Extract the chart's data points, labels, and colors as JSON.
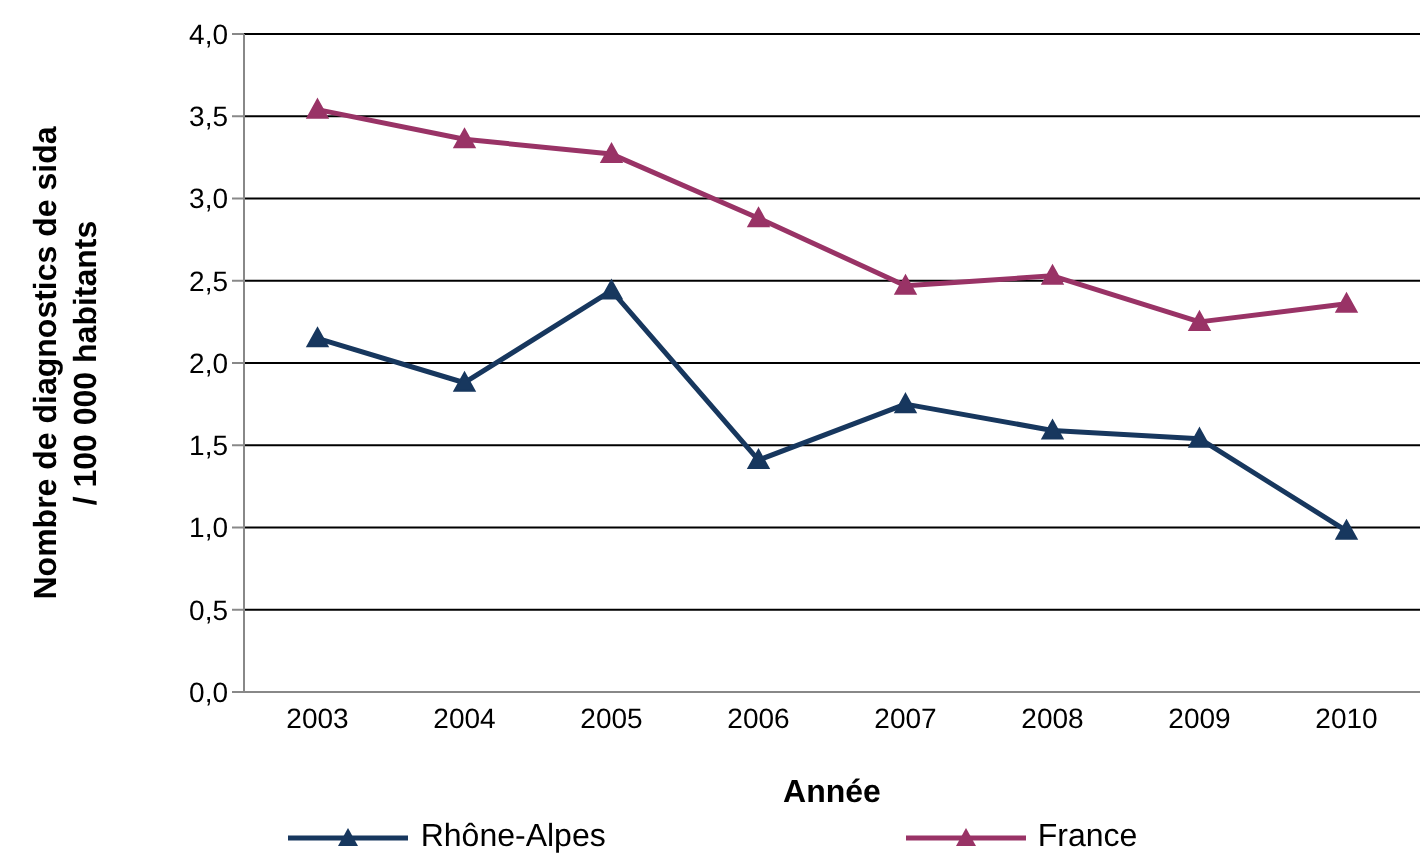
{
  "chart_data": {
    "type": "line",
    "xlabel": "Année",
    "ylabel": "Nombre de diagnostics de sida\n/ 100 000 habitants",
    "categories": [
      "2003",
      "2004",
      "2005",
      "2006",
      "2007",
      "2008",
      "2009",
      "2010"
    ],
    "series": [
      {
        "name": "Rhône-Alpes",
        "color": "#17375e",
        "values": [
          2.15,
          1.88,
          2.44,
          1.41,
          1.75,
          1.59,
          1.54,
          0.98
        ]
      },
      {
        "name": "France",
        "color": "#993366",
        "values": [
          3.54,
          3.36,
          3.27,
          2.88,
          2.47,
          2.53,
          2.25,
          2.36
        ]
      }
    ],
    "ylim": [
      0,
      4
    ],
    "yticks": [
      {
        "value": 0,
        "label": "0,0"
      },
      {
        "value": 0.5,
        "label": "0,5"
      },
      {
        "value": 1,
        "label": "1,0"
      },
      {
        "value": 1.5,
        "label": "1,5"
      },
      {
        "value": 2,
        "label": "2,0"
      },
      {
        "value": 2.5,
        "label": "2,5"
      },
      {
        "value": 3,
        "label": "3,0"
      },
      {
        "value": 3.5,
        "label": "3,5"
      },
      {
        "value": 4,
        "label": "4,0"
      }
    ],
    "grid": "y",
    "legend": "bottom",
    "marker": "triangle",
    "line_style": "solid"
  }
}
